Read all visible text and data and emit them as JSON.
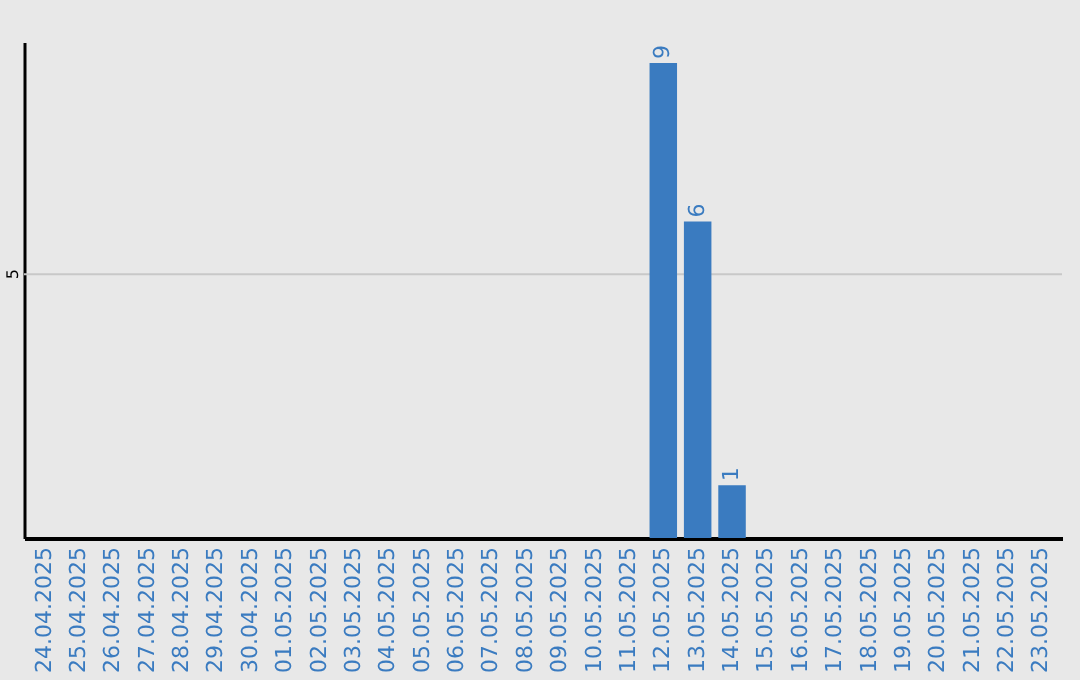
{
  "chart_data": {
    "type": "bar",
    "categories": [
      "24.04.2025",
      "25.04.2025",
      "26.04.2025",
      "27.04.2025",
      "28.04.2025",
      "29.04.2025",
      "30.04.2025",
      "01.05.2025",
      "02.05.2025",
      "03.05.2025",
      "04.05.2025",
      "05.05.2025",
      "06.05.2025",
      "07.05.2025",
      "08.05.2025",
      "09.05.2025",
      "10.05.2025",
      "11.05.2025",
      "12.05.2025",
      "13.05.2025",
      "14.05.2025",
      "15.05.2025",
      "16.05.2025",
      "17.05.2025",
      "18.05.2025",
      "19.05.2025",
      "20.05.2025",
      "21.05.2025",
      "22.05.2025",
      "23.05.2025"
    ],
    "values": [
      null,
      null,
      null,
      null,
      null,
      null,
      null,
      null,
      null,
      null,
      null,
      null,
      null,
      null,
      null,
      null,
      null,
      null,
      9,
      6,
      1,
      null,
      null,
      null,
      null,
      null,
      null,
      null,
      null,
      null
    ],
    "data_labels": true,
    "color": "#3a7bc0",
    "ylim": [
      0,
      9.4
    ],
    "ref_lines": [
      {
        "axis": "y",
        "value": 5,
        "label": "5",
        "color": "#c8c8c8"
      }
    ]
  }
}
